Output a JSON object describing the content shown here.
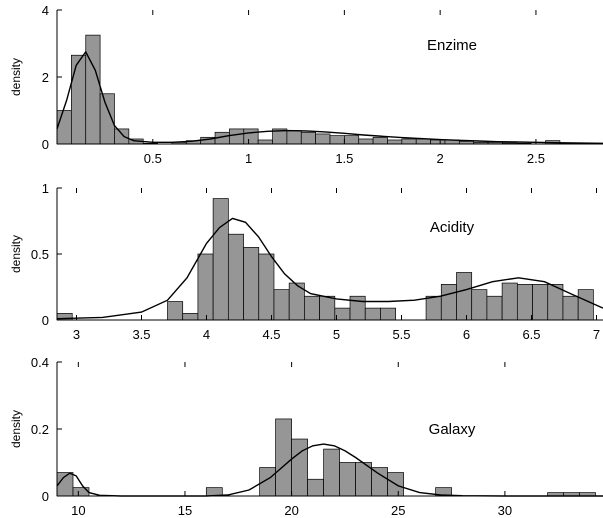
{
  "chart_data": [
    {
      "type": "bar",
      "subtype": "histogram-with-density",
      "title": "Enzime",
      "xlabel": "",
      "ylabel": "density",
      "xlim": [
        0.0,
        2.85
      ],
      "ylim": [
        0,
        4
      ],
      "xticks": [
        0.5,
        1,
        1.5,
        2,
        2.5
      ],
      "xtick_labels": [
        "0.5",
        "1",
        "1.5",
        "2",
        "2.5"
      ],
      "yticks": [
        0,
        2,
        4
      ],
      "ytick_labels": [
        "0",
        "2",
        "4"
      ],
      "bin_width": 0.075,
      "bins_start": [
        0.0,
        0.075,
        0.15,
        0.225,
        0.3,
        0.375,
        0.45,
        0.525,
        0.6,
        0.675,
        0.75,
        0.825,
        0.9,
        0.975,
        1.05,
        1.125,
        1.2,
        1.275,
        1.35,
        1.425,
        1.5,
        1.575,
        1.65,
        1.725,
        1.8,
        1.875,
        1.95,
        2.025,
        2.1,
        2.175,
        2.25,
        2.325,
        2.4,
        2.475,
        2.55,
        2.625,
        2.7,
        2.775
      ],
      "values": [
        1.0,
        2.65,
        3.25,
        1.5,
        0.45,
        0.15,
        0.02,
        0.0,
        0.05,
        0.1,
        0.2,
        0.35,
        0.45,
        0.45,
        0.12,
        0.45,
        0.4,
        0.35,
        0.3,
        0.25,
        0.25,
        0.15,
        0.2,
        0.12,
        0.15,
        0.15,
        0.12,
        0.12,
        0.08,
        0.05,
        0.05,
        0.03,
        0.02,
        0.0,
        0.1,
        0.02,
        0.0,
        0.0
      ],
      "density_curve": {
        "x": [
          0.0,
          0.05,
          0.1,
          0.15,
          0.2,
          0.25,
          0.3,
          0.35,
          0.4,
          0.5,
          0.6,
          0.7,
          0.8,
          0.9,
          1.0,
          1.1,
          1.2,
          1.3,
          1.4,
          1.5,
          1.6,
          1.7,
          1.8,
          1.9,
          2.0,
          2.1,
          2.2,
          2.3,
          2.4,
          2.5,
          2.6,
          2.7,
          2.85
        ],
        "y": [
          0.45,
          1.3,
          2.35,
          2.75,
          2.2,
          1.25,
          0.55,
          0.22,
          0.1,
          0.05,
          0.05,
          0.08,
          0.15,
          0.25,
          0.33,
          0.38,
          0.4,
          0.39,
          0.36,
          0.32,
          0.27,
          0.23,
          0.19,
          0.16,
          0.13,
          0.11,
          0.09,
          0.07,
          0.06,
          0.05,
          0.04,
          0.03,
          0.02
        ]
      }
    },
    {
      "type": "bar",
      "subtype": "histogram-with-density",
      "title": "Acidity",
      "xlabel": "",
      "ylabel": "density",
      "xlim": [
        2.85,
        7.05
      ],
      "ylim": [
        0,
        1
      ],
      "xticks": [
        3,
        3.5,
        4,
        4.5,
        5,
        5.5,
        6,
        6.5,
        7
      ],
      "xtick_labels": [
        "3",
        "3.5",
        "4",
        "4.5",
        "5",
        "5.5",
        "6",
        "6.5",
        "7"
      ],
      "yticks": [
        0,
        0.5,
        1
      ],
      "ytick_labels": [
        "0",
        "0.5",
        "1"
      ],
      "bin_width": 0.117,
      "bins_start": [
        2.85,
        3.7,
        3.817,
        3.934,
        4.051,
        4.168,
        4.285,
        4.402,
        4.519,
        4.636,
        4.753,
        4.87,
        4.987,
        5.104,
        5.221,
        5.338,
        5.455,
        5.572,
        5.689,
        5.806,
        5.923,
        6.04,
        6.157,
        6.274,
        6.391,
        6.508,
        6.625,
        6.742,
        6.859,
        6.976
      ],
      "values": [
        0.05,
        0.14,
        0.05,
        0.5,
        0.92,
        0.65,
        0.55,
        0.5,
        0.23,
        0.28,
        0.18,
        0.18,
        0.09,
        0.18,
        0.09,
        0.09,
        0.0,
        0.0,
        0.18,
        0.27,
        0.36,
        0.23,
        0.18,
        0.28,
        0.27,
        0.27,
        0.27,
        0.18,
        0.23,
        0.0
      ],
      "density_curve": {
        "x": [
          2.85,
          3.2,
          3.5,
          3.7,
          3.85,
          4.0,
          4.1,
          4.2,
          4.3,
          4.4,
          4.5,
          4.6,
          4.7,
          4.8,
          5.0,
          5.2,
          5.4,
          5.6,
          5.8,
          6.0,
          6.2,
          6.4,
          6.6,
          6.8,
          7.05
        ],
        "y": [
          0.01,
          0.02,
          0.06,
          0.15,
          0.32,
          0.58,
          0.7,
          0.77,
          0.74,
          0.63,
          0.48,
          0.35,
          0.26,
          0.2,
          0.16,
          0.14,
          0.14,
          0.15,
          0.18,
          0.23,
          0.29,
          0.32,
          0.29,
          0.2,
          0.09
        ]
      }
    },
    {
      "type": "bar",
      "subtype": "histogram-with-density",
      "title": "Galaxy",
      "xlabel": "",
      "ylabel": "density",
      "xlim": [
        9.0,
        34.6
      ],
      "ylim": [
        0,
        0.4
      ],
      "xticks": [
        10,
        15,
        20,
        25,
        30
      ],
      "xtick_labels": [
        "10",
        "15",
        "20",
        "25",
        "30"
      ],
      "yticks": [
        0,
        0.2,
        0.4
      ],
      "ytick_labels": [
        "0",
        "0.2",
        "0.4"
      ],
      "bin_width": 0.75,
      "bins_start": [
        9.0,
        9.75,
        16.0,
        18.5,
        19.25,
        20.0,
        20.75,
        21.5,
        22.25,
        23.0,
        23.75,
        24.5,
        25.25,
        26.75,
        32.0,
        32.75,
        33.5
      ],
      "values": [
        0.07,
        0.025,
        0.025,
        0.085,
        0.23,
        0.17,
        0.05,
        0.14,
        0.1,
        0.1,
        0.085,
        0.07,
        0.0,
        0.025,
        0.01,
        0.01,
        0.01
      ],
      "density_curve": {
        "x": [
          9.0,
          9.3,
          9.6,
          9.9,
          10.2,
          10.5,
          11.0,
          12,
          14,
          16,
          17,
          18,
          19,
          20,
          20.5,
          21,
          21.5,
          22,
          22.5,
          23,
          24,
          25,
          26,
          27,
          28,
          30,
          32,
          34.6
        ],
        "y": [
          0.03,
          0.055,
          0.068,
          0.06,
          0.03,
          0.01,
          0.002,
          0.0,
          0.0,
          0.0,
          0.003,
          0.018,
          0.055,
          0.11,
          0.135,
          0.15,
          0.155,
          0.15,
          0.135,
          0.115,
          0.07,
          0.03,
          0.01,
          0.003,
          0.001,
          0.0,
          0.0,
          0.0
        ]
      }
    }
  ]
}
